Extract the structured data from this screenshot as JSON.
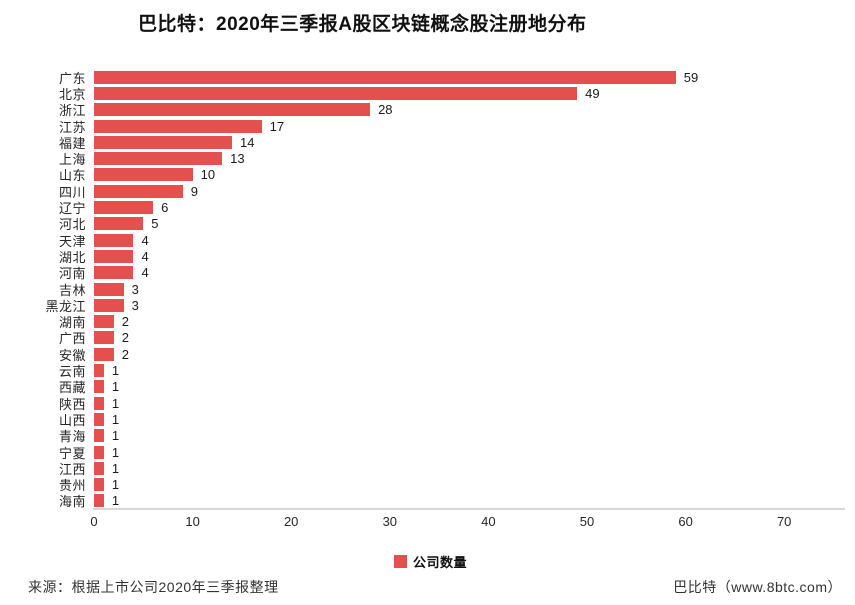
{
  "title": "巴比特：2020年三季报A股区块链概念股注册地分布",
  "chart_data": {
    "type": "bar",
    "orientation": "horizontal",
    "title": "巴比特：2020年三季报A股区块链概念股注册地分布",
    "categories": [
      "广东",
      "北京",
      "浙江",
      "江苏",
      "福建",
      "上海",
      "山东",
      "四川",
      "辽宁",
      "河北",
      "天津",
      "湖北",
      "河南",
      "吉林",
      "黑龙江",
      "湖南",
      "广西",
      "安徽",
      "云南",
      "西藏",
      "陕西",
      "山西",
      "青海",
      "宁夏",
      "江西",
      "贵州",
      "海南"
    ],
    "values": [
      59,
      49,
      28,
      17,
      14,
      13,
      10,
      9,
      6,
      5,
      4,
      4,
      4,
      3,
      3,
      2,
      2,
      2,
      1,
      1,
      1,
      1,
      1,
      1,
      1,
      1,
      1
    ],
    "series_name": "公司数量",
    "x_ticks": [
      0,
      10,
      20,
      30,
      40,
      50,
      60,
      70
    ],
    "xlim": [
      0,
      70
    ],
    "xlabel": "",
    "ylabel": "",
    "grid": false,
    "legend_position": "bottom",
    "bar_color": "#e4504e",
    "value_labels": true
  },
  "legend": {
    "label": "公司数量",
    "swatch_color": "#e4504e"
  },
  "footer": {
    "source": "来源：根据上市公司2020年三季报整理",
    "brand": "巴比特（www.8btc.com）"
  },
  "colors": {
    "bar": "#e4504e",
    "title_text": "#111111",
    "label_text": "#262626",
    "axis_line": "#d7d7d7",
    "background": "#ffffff"
  }
}
